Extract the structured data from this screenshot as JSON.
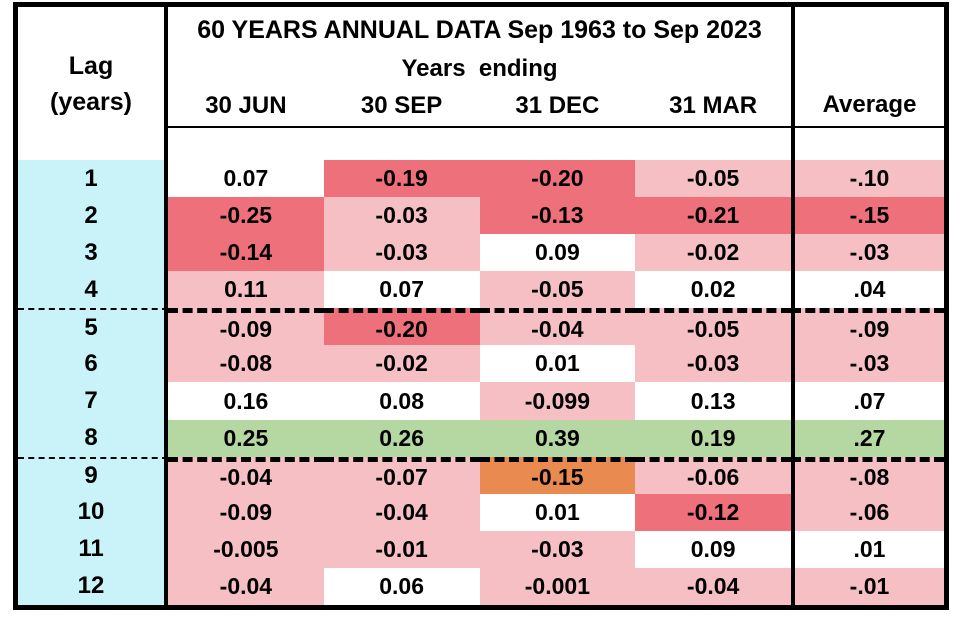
{
  "header": {
    "title": "60 YEARS ANNUAL DATA Sep 1963 to Sep 2023",
    "subtitle": "Years  ending",
    "lag_label_line1": "Lag",
    "lag_label_line2": "(years)",
    "columns": [
      "30 JUN",
      "30 SEP",
      "31 DEC",
      "31 MAR"
    ],
    "average_label": "Average"
  },
  "colors": {
    "red": "#EE707B",
    "pink": "#F5BFC3",
    "orange": "#E98B51",
    "green": "#B5D7A1",
    "cyan": "#C9F3F9"
  },
  "table": {
    "rows": [
      {
        "lag": "1",
        "cells": [
          {
            "v": "0.07",
            "tone": "white"
          },
          {
            "v": "-0.19",
            "tone": "red"
          },
          {
            "v": "-0.20",
            "tone": "red"
          },
          {
            "v": "-0.05",
            "tone": "pink"
          }
        ],
        "avg": {
          "v": "-.10",
          "tone": "pink"
        }
      },
      {
        "lag": "2",
        "cells": [
          {
            "v": "-0.25",
            "tone": "red"
          },
          {
            "v": "-0.03",
            "tone": "pink"
          },
          {
            "v": "-0.13",
            "tone": "red"
          },
          {
            "v": "-0.21",
            "tone": "red"
          }
        ],
        "avg": {
          "v": "-.15",
          "tone": "red"
        }
      },
      {
        "lag": "3",
        "cells": [
          {
            "v": "-0.14",
            "tone": "red"
          },
          {
            "v": "-0.03",
            "tone": "pink"
          },
          {
            "v": "0.09",
            "tone": "white"
          },
          {
            "v": "-0.02",
            "tone": "pink"
          }
        ],
        "avg": {
          "v": "-.03",
          "tone": "pink"
        }
      },
      {
        "lag": "4",
        "cells": [
          {
            "v": "0.11",
            "tone": "pink"
          },
          {
            "v": "0.07",
            "tone": "white"
          },
          {
            "v": "-0.05",
            "tone": "pink"
          },
          {
            "v": "0.02",
            "tone": "white"
          }
        ],
        "avg": {
          "v": ".04",
          "tone": "white"
        }
      },
      {
        "lag": "5",
        "cells": [
          {
            "v": "-0.09",
            "tone": "pink"
          },
          {
            "v": "-0.20",
            "tone": "red"
          },
          {
            "v": "-0.04",
            "tone": "pink"
          },
          {
            "v": "-0.05",
            "tone": "pink"
          }
        ],
        "avg": {
          "v": "-.09",
          "tone": "pink"
        }
      },
      {
        "lag": "6",
        "cells": [
          {
            "v": "-0.08",
            "tone": "pink"
          },
          {
            "v": "-0.02",
            "tone": "pink"
          },
          {
            "v": "0.01",
            "tone": "white"
          },
          {
            "v": "-0.03",
            "tone": "pink"
          }
        ],
        "avg": {
          "v": "-.03",
          "tone": "pink"
        }
      },
      {
        "lag": "7",
        "cells": [
          {
            "v": "0.16",
            "tone": "white"
          },
          {
            "v": "0.08",
            "tone": "white"
          },
          {
            "v": "-0.099",
            "tone": "pink"
          },
          {
            "v": "0.13",
            "tone": "white"
          }
        ],
        "avg": {
          "v": ".07",
          "tone": "white"
        }
      },
      {
        "lag": "8",
        "cells": [
          {
            "v": "0.25",
            "tone": "green"
          },
          {
            "v": "0.26",
            "tone": "green"
          },
          {
            "v": "0.39",
            "tone": "green"
          },
          {
            "v": "0.19",
            "tone": "green"
          }
        ],
        "avg": {
          "v": ".27",
          "tone": "green"
        }
      },
      {
        "lag": "9",
        "cells": [
          {
            "v": "-0.04",
            "tone": "pink"
          },
          {
            "v": "-0.07",
            "tone": "pink"
          },
          {
            "v": "-0.15",
            "tone": "orange"
          },
          {
            "v": "-0.06",
            "tone": "pink"
          }
        ],
        "avg": {
          "v": "-.08",
          "tone": "pink"
        }
      },
      {
        "lag": "10",
        "cells": [
          {
            "v": "-0.09",
            "tone": "pink"
          },
          {
            "v": "-0.04",
            "tone": "pink"
          },
          {
            "v": "0.01",
            "tone": "white"
          },
          {
            "v": "-0.12",
            "tone": "red"
          }
        ],
        "avg": {
          "v": "-.06",
          "tone": "pink"
        }
      },
      {
        "lag": "11",
        "cells": [
          {
            "v": "-0.005",
            "tone": "pink"
          },
          {
            "v": "-0.01",
            "tone": "pink"
          },
          {
            "v": "-0.03",
            "tone": "pink"
          },
          {
            "v": "0.09",
            "tone": "white"
          }
        ],
        "avg": {
          "v": ".01",
          "tone": "white"
        }
      },
      {
        "lag": "12",
        "cells": [
          {
            "v": "-0.04",
            "tone": "pink"
          },
          {
            "v": "0.06",
            "tone": "white"
          },
          {
            "v": "-0.001",
            "tone": "pink"
          },
          {
            "v": "-0.04",
            "tone": "pink"
          }
        ],
        "avg": {
          "v": "-.01",
          "tone": "pink"
        }
      }
    ]
  },
  "chart_data": {
    "type": "heatmap",
    "title": "60 YEARS ANNUAL DATA Sep 1963 to Sep 2023",
    "column_group_label": "Years ending",
    "x_labels": [
      "30 JUN",
      "30 SEP",
      "31 DEC",
      "31 MAR",
      "Average"
    ],
    "y_label": "Lag (years)",
    "y_values": [
      1,
      2,
      3,
      4,
      5,
      6,
      7,
      8,
      9,
      10,
      11,
      12
    ],
    "matrix": [
      [
        0.07,
        -0.19,
        -0.2,
        -0.05,
        -0.1
      ],
      [
        -0.25,
        -0.03,
        -0.13,
        -0.21,
        -0.15
      ],
      [
        -0.14,
        -0.03,
        0.09,
        -0.02,
        -0.03
      ],
      [
        0.11,
        0.07,
        -0.05,
        0.02,
        0.04
      ],
      [
        -0.09,
        -0.2,
        -0.04,
        -0.05,
        -0.09
      ],
      [
        -0.08,
        -0.02,
        0.01,
        -0.03,
        -0.03
      ],
      [
        0.16,
        0.08,
        -0.099,
        0.13,
        0.07
      ],
      [
        0.25,
        0.26,
        0.39,
        0.19,
        0.27
      ],
      [
        -0.04,
        -0.07,
        -0.15,
        -0.06,
        -0.08
      ],
      [
        -0.09,
        -0.04,
        0.01,
        -0.12,
        -0.06
      ],
      [
        -0.005,
        -0.01,
        -0.03,
        0.09,
        0.01
      ],
      [
        -0.04,
        0.06,
        -0.001,
        -0.04,
        -0.01
      ]
    ],
    "section_breaks_after_lag": [
      4,
      8
    ],
    "grid": true,
    "legend": "none"
  }
}
